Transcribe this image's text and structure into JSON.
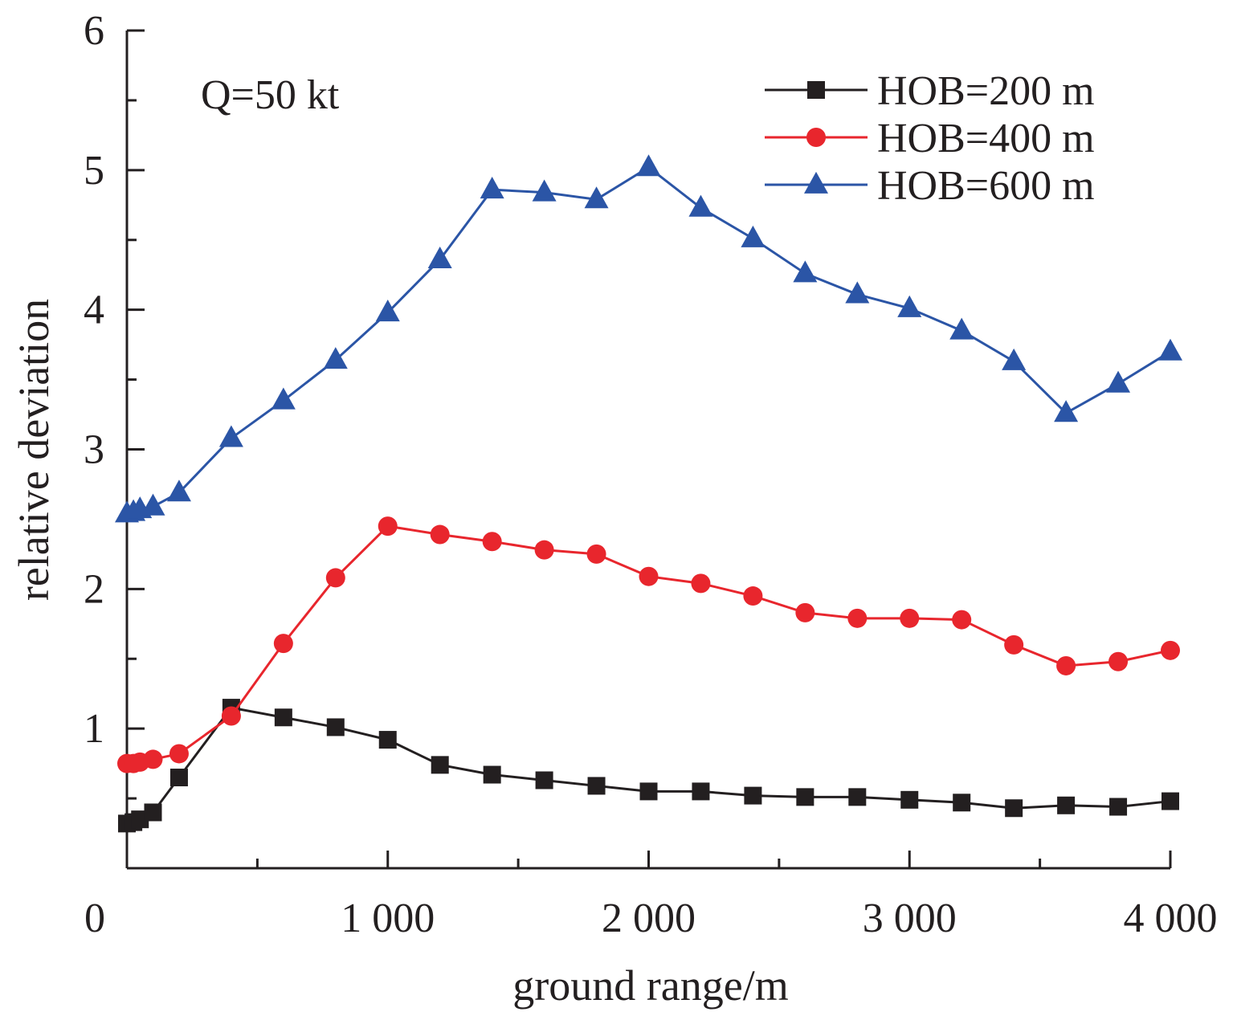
{
  "chart_data": {
    "type": "line",
    "title": "",
    "annotation": "Q=50 kt",
    "xlabel": "ground range/m",
    "ylabel": "relative deviation",
    "xlim": [
      0,
      4000
    ],
    "ylim": [
      0,
      6
    ],
    "x_ticks": [
      0,
      1000,
      2000,
      3000,
      4000
    ],
    "x_tick_labels": [
      "0",
      "1 000",
      "2 000",
      "3 000",
      "4 000"
    ],
    "y_ticks": [
      1,
      2,
      3,
      4,
      5,
      6
    ],
    "y_tick_labels": [
      "1",
      "2",
      "3",
      "4",
      "5",
      "6"
    ],
    "grid": false,
    "legend_position": "top-right",
    "series": [
      {
        "name": "HOB=200 m",
        "color": "#231f20",
        "marker": "square",
        "x": [
          0,
          25,
          50,
          100,
          200,
          400,
          600,
          800,
          1000,
          1200,
          1400,
          1600,
          1800,
          2000,
          2200,
          2400,
          2600,
          2800,
          3000,
          3200,
          3400,
          3600,
          3800,
          4000
        ],
        "y": [
          0.32,
          0.33,
          0.35,
          0.4,
          0.65,
          1.15,
          1.08,
          1.01,
          0.92,
          0.74,
          0.67,
          0.63,
          0.59,
          0.55,
          0.55,
          0.52,
          0.51,
          0.51,
          0.49,
          0.47,
          0.43,
          0.45,
          0.44,
          0.48
        ]
      },
      {
        "name": "HOB=400 m",
        "color": "#e8262d",
        "marker": "circle",
        "x": [
          0,
          25,
          50,
          100,
          200,
          400,
          600,
          800,
          1000,
          1200,
          1400,
          1600,
          1800,
          2000,
          2200,
          2400,
          2600,
          2800,
          3000,
          3200,
          3400,
          3600,
          3800,
          4000
        ],
        "y": [
          0.75,
          0.75,
          0.76,
          0.78,
          0.82,
          1.09,
          1.61,
          2.08,
          2.45,
          2.39,
          2.34,
          2.28,
          2.25,
          2.09,
          2.04,
          1.95,
          1.83,
          1.79,
          1.79,
          1.78,
          1.6,
          1.45,
          1.48,
          1.56
        ]
      },
      {
        "name": "HOB=600 m",
        "color": "#2b55a6",
        "marker": "triangle",
        "x": [
          0,
          25,
          50,
          100,
          200,
          400,
          600,
          800,
          1000,
          1200,
          1400,
          1600,
          1800,
          2000,
          2200,
          2400,
          2600,
          2800,
          3000,
          3200,
          3400,
          3600,
          3800,
          4000
        ],
        "y": [
          2.54,
          2.55,
          2.57,
          2.59,
          2.69,
          3.08,
          3.35,
          3.64,
          3.98,
          4.36,
          4.86,
          4.84,
          4.79,
          5.02,
          4.73,
          4.51,
          4.26,
          4.11,
          4.01,
          3.85,
          3.63,
          3.26,
          3.47,
          3.7
        ]
      }
    ]
  }
}
